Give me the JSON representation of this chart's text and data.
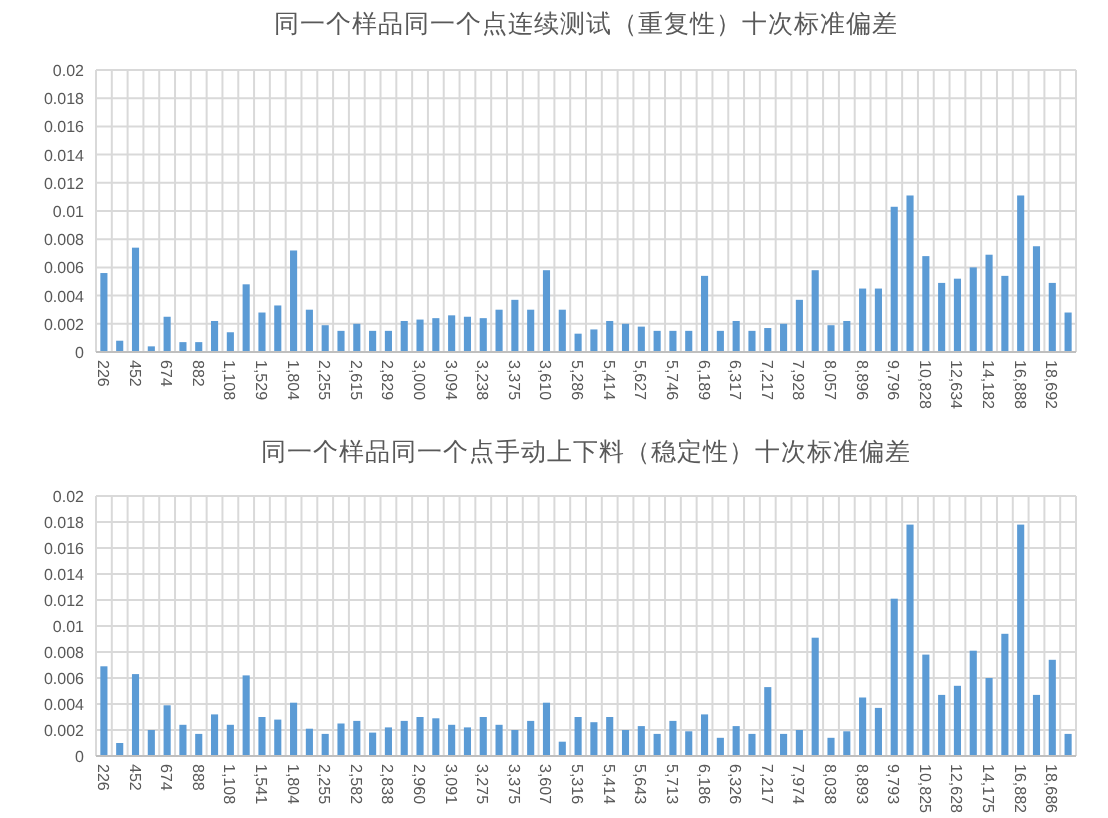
{
  "chart_data": [
    {
      "type": "bar",
      "title": "同一个样品同一个点连续测试（重复性）十次标准偏差",
      "categories": [
        "226",
        null,
        "452",
        null,
        "674",
        null,
        "882",
        null,
        "1,108",
        null,
        "1,529",
        null,
        "1,804",
        null,
        "2,255",
        null,
        "2,615",
        null,
        "2,829",
        null,
        "3,000",
        null,
        "3,094",
        null,
        "3,238",
        null,
        "3,375",
        null,
        "3,610",
        null,
        "5,286",
        null,
        "5,414",
        null,
        "5,627",
        null,
        "5,746",
        null,
        "6,189",
        null,
        "6,317",
        null,
        "7,217",
        null,
        "7,928",
        null,
        "8,057",
        null,
        "8,896",
        null,
        "9,796",
        null,
        "10,828",
        null,
        "12,634",
        null,
        "14,182",
        null,
        "16,888",
        null,
        "18,692",
        null
      ],
      "values": [
        0.0056,
        0.0008,
        0.0074,
        0.0004,
        0.0025,
        0.0007,
        0.0007,
        0.0022,
        0.0014,
        0.0048,
        0.0028,
        0.0033,
        0.0072,
        0.003,
        0.0019,
        0.0015,
        0.002,
        0.0015,
        0.0015,
        0.0022,
        0.0023,
        0.0024,
        0.0026,
        0.0025,
        0.0024,
        0.003,
        0.0037,
        0.003,
        0.0058,
        0.003,
        0.0013,
        0.0016,
        0.0022,
        0.002,
        0.0018,
        0.0015,
        0.0015,
        0.0015,
        0.0054,
        0.0015,
        0.0022,
        0.0015,
        0.0017,
        0.002,
        0.0037,
        0.0058,
        0.0019,
        0.0022,
        0.0045,
        0.0045,
        0.0103,
        0.0111,
        0.0068,
        0.0049,
        0.0052,
        0.006,
        0.0069,
        0.0054,
        0.0111,
        0.0075,
        0.0049,
        0.0028
      ],
      "color": "#5b9bd5",
      "ylim": [
        0,
        0.02
      ],
      "yticks": [
        0,
        0.002,
        0.004,
        0.006,
        0.008,
        0.01,
        0.012,
        0.014,
        0.016,
        0.018,
        0.02
      ],
      "grid": true
    },
    {
      "type": "bar",
      "title": "同一个样品同一个点手动上下料（稳定性）十次标准偏差",
      "categories": [
        "226",
        null,
        "452",
        null,
        "674",
        null,
        "888",
        null,
        "1,108",
        null,
        "1,541",
        null,
        "1,804",
        null,
        "2,255",
        null,
        "2,582",
        null,
        "2,838",
        null,
        "2,960",
        null,
        "3,091",
        null,
        "3,275",
        null,
        "3,375",
        null,
        "3,607",
        null,
        "5,316",
        null,
        "5,414",
        null,
        "5,643",
        null,
        "5,713",
        null,
        "6,186",
        null,
        "6,326",
        null,
        "7,217",
        null,
        "7,974",
        null,
        "8,038",
        null,
        "8,893",
        null,
        "9,793",
        null,
        "10,825",
        null,
        "12,628",
        null,
        "14,175",
        null,
        "16,882",
        null,
        "18,686",
        null
      ],
      "values": [
        0.0069,
        0.001,
        0.0063,
        0.002,
        0.0039,
        0.0024,
        0.0017,
        0.0032,
        0.0024,
        0.0062,
        0.003,
        0.0028,
        0.0041,
        0.0021,
        0.0017,
        0.0025,
        0.0027,
        0.0018,
        0.0022,
        0.0027,
        0.003,
        0.0029,
        0.0024,
        0.0022,
        0.003,
        0.0024,
        0.002,
        0.0027,
        0.0041,
        0.0011,
        0.003,
        0.0026,
        0.003,
        0.002,
        0.0023,
        0.0017,
        0.0027,
        0.0019,
        0.0032,
        0.0014,
        0.0023,
        0.0017,
        0.0053,
        0.0017,
        0.002,
        0.0091,
        0.0014,
        0.0019,
        0.0045,
        0.0037,
        0.0121,
        0.0178,
        0.0078,
        0.0047,
        0.0054,
        0.0081,
        0.006,
        0.0094,
        0.0178,
        0.0047,
        0.0074,
        0.0017
      ],
      "color": "#5b9bd5",
      "ylim": [
        0,
        0.02
      ],
      "yticks": [
        0,
        0.002,
        0.004,
        0.006,
        0.008,
        0.01,
        0.012,
        0.014,
        0.016,
        0.018,
        0.02
      ],
      "grid": true
    }
  ]
}
